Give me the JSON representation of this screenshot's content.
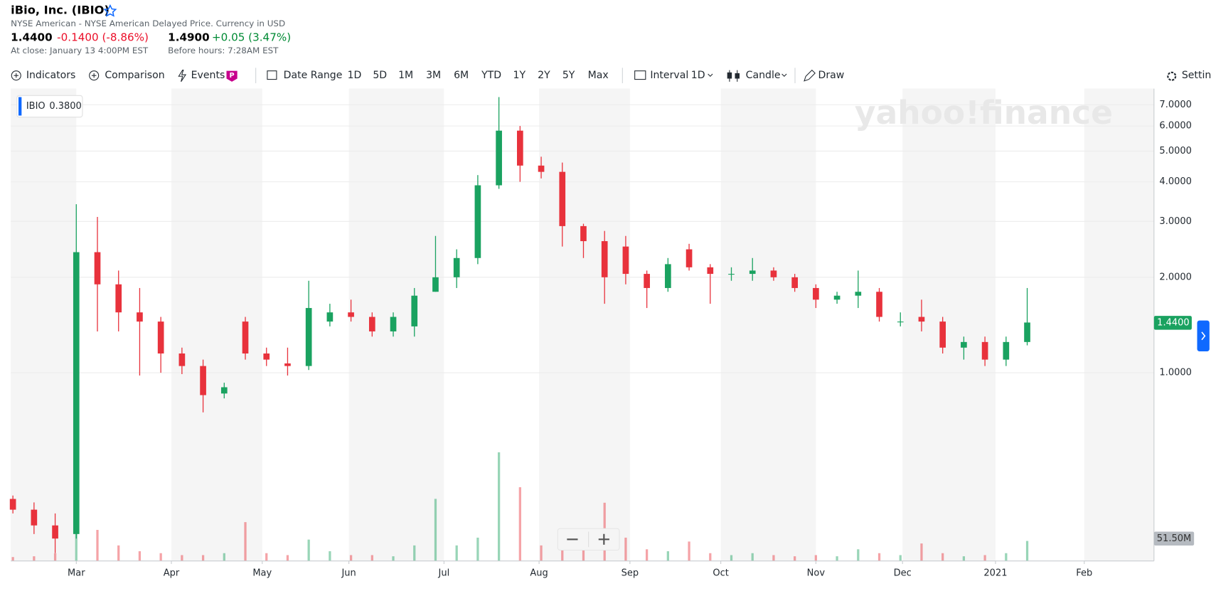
{
  "header": {
    "title": "iBio, Inc. (IBIO)",
    "exchange": "NYSE American - NYSE American Delayed Price. Currency in USD",
    "price": "1.4400",
    "change": "-0.1400 (-8.86%)",
    "close_note": "At close: January 13 4:00PM EST",
    "pre_price": "1.4900",
    "pre_change": "+0.05 (3.47%)",
    "pre_note": "Before hours: 7:28AM EST"
  },
  "toolbar": {
    "indicators": "Indicators",
    "comparison": "Comparison",
    "events": "Events",
    "events_badge": "P",
    "date_range": "Date Range",
    "ranges": [
      "1D",
      "5D",
      "1M",
      "3M",
      "6M",
      "YTD",
      "1Y",
      "2Y",
      "5Y",
      "Max"
    ],
    "interval": "Interval",
    "interval_value": "1D",
    "chart_style": "Candle",
    "draw": "Draw",
    "settings": "Settings"
  },
  "chart_data": {
    "type": "candlestick",
    "log_scale": true,
    "watermark": "yahoo!finance",
    "legend_value": "0.3800",
    "price_last_label": "1.4400",
    "volume_last_label": "51.50M",
    "up_color": "#1aa260",
    "down_color": "#e8323c",
    "categories": [
      null,
      null,
      null,
      null,
      null,
      null,
      null,
      null,
      null,
      null,
      null,
      null,
      null,
      null,
      null,
      null,
      null,
      null,
      null,
      null,
      null,
      null,
      null,
      null,
      null,
      null,
      null,
      null,
      null,
      null,
      null,
      null,
      null,
      null,
      null,
      null,
      null,
      null,
      null,
      null,
      null,
      null,
      null,
      null,
      null,
      null,
      null,
      null,
      null
    ],
    "xlim": [
      -0.1,
      54
    ],
    "xticks": [
      {
        "value": 3.0,
        "label": "Mar"
      },
      {
        "value": 7.5,
        "label": "Apr"
      },
      {
        "value": 11.8,
        "label": "May"
      },
      {
        "value": 15.9,
        "label": "Jun"
      },
      {
        "value": 20.4,
        "label": "Jul"
      },
      {
        "value": 24.9,
        "label": "Aug"
      },
      {
        "value": 29.2,
        "label": "Sep"
      },
      {
        "value": 33.5,
        "label": "Oct"
      },
      {
        "value": 38.0,
        "label": "Nov"
      },
      {
        "value": 42.1,
        "label": "Dec"
      },
      {
        "value": 46.5,
        "label": "2021"
      },
      {
        "value": 50.7,
        "label": "Feb"
      }
    ],
    "ylim": [
      0.255,
      7.87
    ],
    "yticks": [
      {
        "value": 7,
        "label": "7.0000"
      },
      {
        "value": 6,
        "label": "6.0000"
      },
      {
        "value": 5,
        "label": "5.0000"
      },
      {
        "value": 4,
        "label": "4.0000"
      },
      {
        "value": 3,
        "label": "3.0000"
      },
      {
        "value": 2,
        "label": "2.0000"
      },
      {
        "value": 1,
        "label": "1.0000"
      }
    ],
    "series": [
      {
        "name": "IBIO",
        "open": [
          0.4,
          0.37,
          0.33,
          0.31,
          2.4,
          1.9,
          1.55,
          1.45,
          1.15,
          1.05,
          0.86,
          1.45,
          1.15,
          1.07,
          1.05,
          1.45,
          1.55,
          1.5,
          1.35,
          1.4,
          1.8,
          2.0,
          2.3,
          3.9,
          5.8,
          4.5,
          4.3,
          2.9,
          2.6,
          2.5,
          2.05,
          1.85,
          2.45,
          2.15,
          2.05,
          2.05,
          2.1,
          2.0,
          1.85,
          1.7,
          1.75,
          1.8,
          1.45,
          1.5,
          1.45,
          1.2,
          1.25,
          1.1,
          1.25
        ],
        "high": [
          0.41,
          0.39,
          0.36,
          3.4,
          3.1,
          2.1,
          1.85,
          1.5,
          1.2,
          1.1,
          0.93,
          1.5,
          1.2,
          1.2,
          1.95,
          1.65,
          1.7,
          1.55,
          1.55,
          1.85,
          2.7,
          2.45,
          4.2,
          7.4,
          6.0,
          4.8,
          4.6,
          2.95,
          2.8,
          2.7,
          2.1,
          2.3,
          2.55,
          2.2,
          2.15,
          2.3,
          2.15,
          2.05,
          1.9,
          1.8,
          2.1,
          1.85,
          1.55,
          1.7,
          1.5,
          1.3,
          1.3,
          1.3,
          1.85
        ],
        "low": [
          0.36,
          0.31,
          0.27,
          0.3,
          1.35,
          1.35,
          0.98,
          1.0,
          0.99,
          0.75,
          0.83,
          1.1,
          1.05,
          0.98,
          1.02,
          1.4,
          1.45,
          1.3,
          1.3,
          1.3,
          1.8,
          1.85,
          2.2,
          3.8,
          4.0,
          4.1,
          2.5,
          2.3,
          1.65,
          1.9,
          1.6,
          1.8,
          2.1,
          1.65,
          1.95,
          1.95,
          1.95,
          1.8,
          1.6,
          1.65,
          1.6,
          1.45,
          1.4,
          1.35,
          1.15,
          1.1,
          1.05,
          1.05,
          1.22
        ],
        "close": [
          0.37,
          0.33,
          0.3,
          2.4,
          1.9,
          1.55,
          1.45,
          1.15,
          1.05,
          0.85,
          0.9,
          1.15,
          1.1,
          1.05,
          1.6,
          1.55,
          1.5,
          1.35,
          1.5,
          1.75,
          2.0,
          2.3,
          3.9,
          5.8,
          4.5,
          4.3,
          2.9,
          2.6,
          2.0,
          2.05,
          1.85,
          2.2,
          2.15,
          2.05,
          2.05,
          2.1,
          2.0,
          1.85,
          1.7,
          1.75,
          1.8,
          1.5,
          1.45,
          1.45,
          1.2,
          1.25,
          1.1,
          1.25,
          1.44
        ],
        "volume": [
          10,
          12,
          20,
          200,
          80,
          40,
          25,
          20,
          15,
          15,
          20,
          100,
          20,
          15,
          55,
          25,
          15,
          15,
          12,
          40,
          160,
          40,
          60,
          280,
          190,
          40,
          50,
          40,
          150,
          60,
          30,
          25,
          50,
          20,
          15,
          20,
          15,
          12,
          15,
          12,
          30,
          20,
          15,
          45,
          20,
          12,
          15,
          20,
          51.5
        ]
      }
    ]
  }
}
